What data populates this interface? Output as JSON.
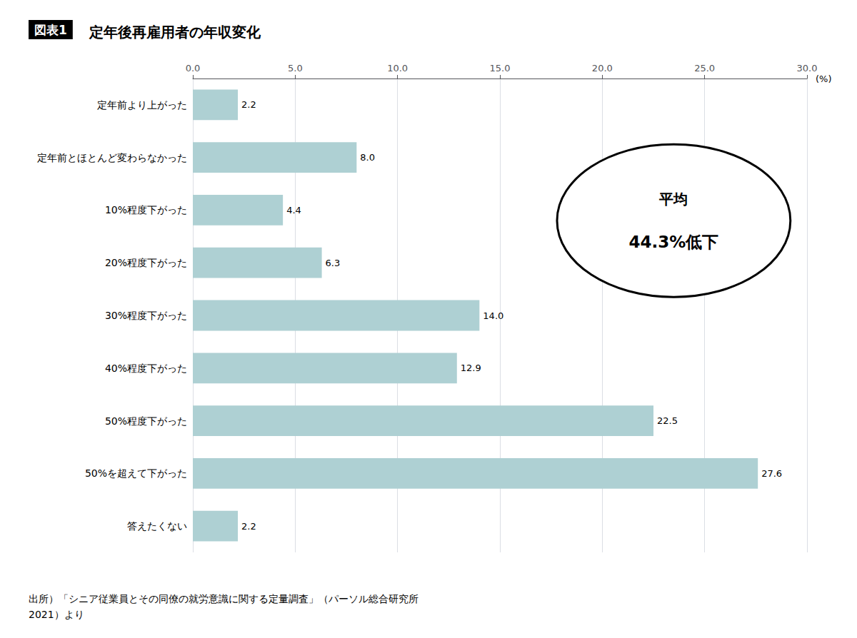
{
  "chart_data": {
    "type": "bar",
    "orientation": "horizontal",
    "title_label": "図表1",
    "title": "定年後再雇用者の年収変化",
    "categories": [
      "定年前より上がった",
      "定年前とほとんど変わらなかった",
      "10%程度下がった",
      "20%程度下がった",
      "30%程度下がった",
      "40%程度下がった",
      "50%程度下がった",
      "50%を超えて下がった",
      "答えたくない"
    ],
    "values": [
      2.2,
      8.0,
      4.4,
      6.3,
      14.0,
      12.9,
      22.5,
      27.6,
      2.2
    ],
    "value_labels": [
      "2.2",
      "8.0",
      "4.4",
      "6.3",
      "14.0",
      "12.9",
      "22.5",
      "27.6",
      "2.2"
    ],
    "data_labels": true,
    "color": "#aed0d3",
    "xlabel": "(%)",
    "xlim": [
      0,
      30.0
    ],
    "xticks": [
      {
        "value": 0.0,
        "label": "0.0"
      },
      {
        "value": 5.0,
        "label": "5.0"
      },
      {
        "value": 10.0,
        "label": "10.0"
      },
      {
        "value": 15.0,
        "label": "15.0"
      },
      {
        "value": 20.0,
        "label": "20.0"
      },
      {
        "value": 25.0,
        "label": "25.0"
      },
      {
        "value": 30.0,
        "label": "30.0"
      }
    ],
    "grid": true,
    "annotations": [
      "平均",
      "44.3%低下"
    ],
    "source": "出所）「シニア従業員とその同僚の就労意識に関する定量調査」（パーソル総合研究所\n2021）より"
  }
}
